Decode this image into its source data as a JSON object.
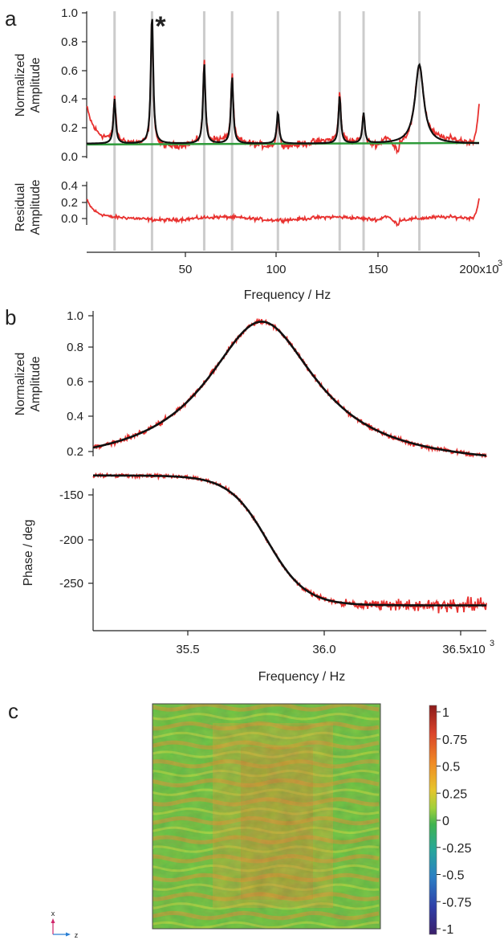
{
  "colors": {
    "data": "#e8312f",
    "fit": "#111111",
    "baseline": "#2e9b3a",
    "marker": "#cccccc"
  },
  "panels": {
    "a": {
      "letter": "a",
      "top_ylabel": [
        "Normalized",
        "Amplitude"
      ],
      "bottom_ylabel": [
        "Residual",
        "Amplitude"
      ],
      "top_yticks": [
        "0.0",
        "0.2",
        "0.4",
        "0.6",
        "0.8",
        "1.0"
      ],
      "bottom_yticks": [
        "0.0",
        "0.2",
        "0.4"
      ],
      "xticks": [
        "50",
        "100",
        "150",
        "200x10"
      ],
      "xexp": "3",
      "xlabel": "Frequency / Hz",
      "star": "*"
    },
    "b": {
      "letter": "b",
      "top_ylabel": [
        "Normalized",
        "Amplitude"
      ],
      "bottom_ylabel": "Phase / deg",
      "top_yticks": [
        "0.2",
        "0.4",
        "0.6",
        "0.8",
        "1.0"
      ],
      "bottom_yticks": [
        "-150",
        "-200",
        "-250"
      ],
      "xticks": [
        "35.5",
        "36.0",
        "36.5x10"
      ],
      "xexp": "3",
      "xlabel": "Frequency / Hz"
    },
    "c": {
      "letter": "c",
      "colorbar_ticks": [
        "1",
        "0.75",
        "0.5",
        "0.25",
        "0",
        "-0.25",
        "-0.5",
        "-0.75",
        "-1"
      ],
      "axes_labels": {
        "x": "x",
        "z": "z"
      }
    }
  },
  "chart_data": [
    {
      "type": "line",
      "panel": "a-top",
      "xlabel": "Frequency / Hz",
      "ylabel": "Normalized Amplitude",
      "xlim": [
        3000,
        200000
      ],
      "ylim": [
        0,
        1.0
      ],
      "peak_frequencies": [
        17000,
        35800,
        62000,
        76000,
        99000,
        130000,
        142000,
        170000
      ],
      "peak_amplitudes": [
        0.4,
        1.0,
        0.65,
        0.56,
        0.31,
        0.42,
        0.3,
        0.64
      ],
      "baseline": 0.09,
      "marked_peak": 35800,
      "series": [
        {
          "name": "",
          "role": "data",
          "color": "#e8312f"
        },
        {
          "name": "",
          "role": "fit",
          "color": "#111111"
        },
        {
          "name": "",
          "role": "baseline",
          "color": "#2e9b3a"
        }
      ],
      "grid": false
    },
    {
      "type": "line",
      "panel": "a-bottom",
      "ylabel": "Residual Amplitude",
      "xlim": [
        3000,
        200000
      ],
      "ylim": [
        -0.1,
        0.4
      ],
      "series": [
        {
          "name": "",
          "role": "residual",
          "color": "#e8312f"
        }
      ],
      "grid": false
    },
    {
      "type": "line",
      "panel": "b-top",
      "xlabel": "Frequency / Hz",
      "ylabel": "Normalized Amplitude",
      "xlim": [
        35200,
        36600
      ],
      "ylim": [
        0.2,
        1.0
      ],
      "resonance": {
        "center": 35800,
        "peak": 0.96,
        "offset": 0.1,
        "half_width": 240
      },
      "series": [
        {
          "name": "",
          "role": "data",
          "color": "#e8312f"
        },
        {
          "name": "",
          "role": "fit",
          "color": "#111111"
        }
      ],
      "grid": false
    },
    {
      "type": "line",
      "panel": "b-bottom",
      "xlabel": "Frequency / Hz",
      "ylabel": "Phase / deg",
      "xlim": [
        35200,
        36600
      ],
      "ylim": [
        -290,
        -120
      ],
      "phase": {
        "start": -128,
        "end": -275,
        "center": 35820,
        "width": 130
      },
      "series": [
        {
          "name": "",
          "role": "data",
          "color": "#e8312f"
        },
        {
          "name": "",
          "role": "fit",
          "color": "#111111"
        }
      ],
      "grid": false
    },
    {
      "type": "heatmap",
      "panel": "c",
      "colorbar_range": [
        -1,
        1
      ],
      "colorbar_ticks": [
        1,
        0.75,
        0.5,
        0.25,
        0,
        -0.25,
        -0.5,
        -0.75,
        -1
      ],
      "colorbar_colors": [
        "#8b1a1a",
        "#d9432a",
        "#f08a24",
        "#e6c52c",
        "#9fd03a",
        "#3fb34f",
        "#27a79a",
        "#2b7fc4",
        "#2f3fa8",
        "#3a1f6a"
      ]
    }
  ]
}
